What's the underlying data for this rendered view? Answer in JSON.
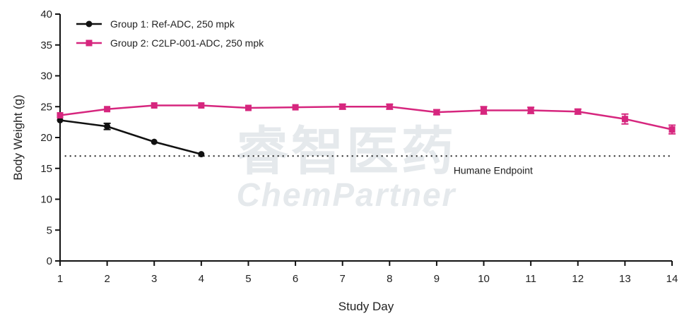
{
  "chart_data": {
    "type": "line",
    "title": "",
    "xlabel": "Study Day",
    "ylabel": "Body Weight (g)",
    "xlim": [
      1,
      14
    ],
    "ylim": [
      0,
      40
    ],
    "x_ticks": [
      1,
      2,
      3,
      4,
      5,
      6,
      7,
      8,
      9,
      10,
      11,
      12,
      13,
      14
    ],
    "y_ticks": [
      0,
      5,
      10,
      15,
      20,
      25,
      30,
      35,
      40
    ],
    "grid": false,
    "legend_position": "top-left",
    "series": [
      {
        "name": "Group 1: Ref-ADC, 250 mpk",
        "color": "#111111",
        "marker": "circle",
        "x": [
          1,
          2,
          3,
          4
        ],
        "y": [
          22.8,
          21.8,
          19.3,
          17.3
        ],
        "error": [
          0.0,
          0.5,
          0.0,
          0.0
        ]
      },
      {
        "name": "Group 2: C2LP-001-ADC, 250 mpk",
        "color": "#d6267e",
        "marker": "square",
        "x": [
          1,
          2,
          3,
          4,
          5,
          6,
          7,
          8,
          9,
          10,
          11,
          12,
          13,
          14
        ],
        "y": [
          23.6,
          24.6,
          25.2,
          25.2,
          24.8,
          24.9,
          25.0,
          25.0,
          24.1,
          24.4,
          24.4,
          24.2,
          23.0,
          21.3
        ],
        "error": [
          0.0,
          0.0,
          0.0,
          0.0,
          0.0,
          0.0,
          0.4,
          0.4,
          0.4,
          0.6,
          0.5,
          0.4,
          0.8,
          0.7
        ]
      }
    ],
    "reference_lines": [
      {
        "y": 17.0,
        "style": "dotted",
        "label": "Humane Endpoint"
      }
    ]
  },
  "watermark": {
    "line1": "睿智医药",
    "line2": "ChemPartner"
  }
}
